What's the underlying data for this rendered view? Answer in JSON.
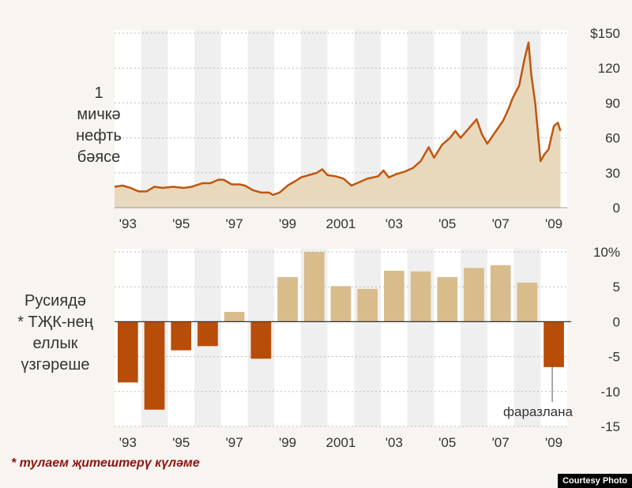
{
  "colors": {
    "background": "#f8f4ef",
    "band": "#efefef",
    "area_fill": "#e8d9bd",
    "line": "#c0560f",
    "bar_positive": "#d9bc8c",
    "bar_negative": "#b84d0a"
  },
  "labels": {
    "top_ylabel": [
      "1",
      "мичкә",
      "нефть",
      "бәясе"
    ],
    "bottom_ylabel": [
      "Русиядә",
      "* ТҖК-нең",
      "еллык",
      "үзгәреше"
    ],
    "footnote": "* тулаем җитештерү күләме",
    "forecast_note": "фаразлана",
    "credit": "Courtesy Photo"
  },
  "chart_data": [
    {
      "type": "area",
      "ylabel": "1 мичкә нефть бәясе",
      "xlim": [
        1993,
        2010
      ],
      "ylim": [
        0,
        150
      ],
      "x_tick_labels": [
        "'93",
        "'95",
        "'97",
        "'99",
        "2001",
        "'03",
        "'05",
        "'07",
        "'09"
      ],
      "y_ticks": [
        0,
        30,
        60,
        90,
        120,
        150
      ],
      "y_tick_labels": [
        "0",
        "30",
        "60",
        "90",
        "120",
        "$150"
      ],
      "grid": true,
      "x": [
        1993.0,
        1993.3,
        1993.6,
        1993.9,
        1994.2,
        1994.5,
        1994.8,
        1995.2,
        1995.6,
        1995.9,
        1996.3,
        1996.6,
        1996.9,
        1997.1,
        1997.4,
        1997.7,
        1997.9,
        1998.2,
        1998.5,
        1998.8,
        1998.95,
        1999.2,
        1999.5,
        1999.8,
        2000.0,
        2000.3,
        2000.6,
        2000.8,
        2001.0,
        2001.3,
        2001.6,
        2001.9,
        2002.2,
        2002.5,
        2002.9,
        2003.1,
        2003.3,
        2003.6,
        2003.9,
        2004.2,
        2004.5,
        2004.8,
        2005.0,
        2005.3,
        2005.6,
        2005.8,
        2006.0,
        2006.3,
        2006.6,
        2006.8,
        2007.0,
        2007.3,
        2007.6,
        2007.8,
        2007.95,
        2008.2,
        2008.4,
        2008.55,
        2008.65,
        2008.8,
        2008.9,
        2009.0,
        2009.15,
        2009.3,
        2009.5,
        2009.65,
        2009.75
      ],
      "y": [
        18,
        19,
        17,
        14,
        14,
        18,
        17,
        18,
        17,
        18,
        21,
        21,
        24,
        24,
        20,
        20,
        19,
        15,
        13,
        13,
        11,
        13,
        19,
        23,
        26,
        28,
        30,
        33,
        28,
        27,
        25,
        19,
        22,
        25,
        27,
        32,
        26,
        29,
        31,
        34,
        40,
        52,
        43,
        54,
        60,
        66,
        60,
        68,
        76,
        63,
        55,
        65,
        75,
        85,
        94,
        105,
        128,
        142,
        115,
        90,
        65,
        40,
        46,
        50,
        70,
        73,
        66
      ]
    },
    {
      "type": "bar",
      "ylabel": "Русиядә * ТҖК-нең еллык үзгәреше",
      "categories": [
        "1993",
        "1994",
        "1995",
        "1996",
        "1997",
        "1998",
        "1999",
        "2000",
        "2001",
        "2002",
        "2003",
        "2004",
        "2005",
        "2006",
        "2007",
        "2008",
        "2009"
      ],
      "values": [
        -8.7,
        -12.6,
        -4.1,
        -3.5,
        1.4,
        -5.3,
        6.4,
        10.0,
        5.1,
        4.7,
        7.3,
        7.2,
        6.4,
        7.7,
        8.1,
        5.6,
        -6.5
      ],
      "forecast": [
        "2009"
      ],
      "ylim": [
        -15,
        10
      ],
      "y_ticks": [
        -15,
        -10,
        -5,
        0,
        5,
        10
      ],
      "y_tick_labels": [
        "-15",
        "-10",
        "-5",
        "0",
        "5",
        "10%"
      ],
      "x_tick_labels": [
        "'93",
        "'95",
        "'97",
        "'99",
        "2001",
        "'03",
        "'05",
        "'07",
        "'09"
      ],
      "grid": true
    }
  ]
}
